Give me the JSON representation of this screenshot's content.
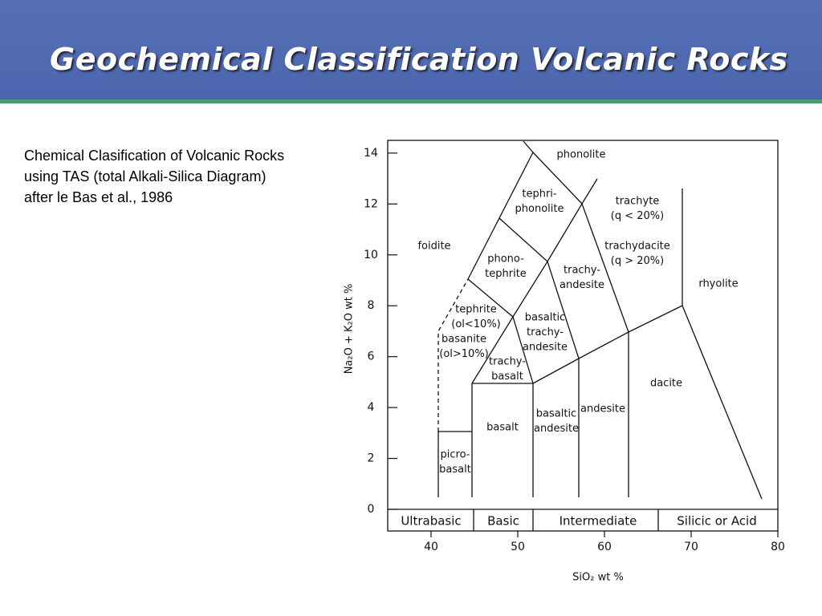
{
  "header": {
    "title": "Geochemical Classification Volcanic Rocks"
  },
  "text": [
    "Chemical Clasification of Volcanic Rocks",
    "using TAS (total Alkali-Silica Diagram)",
    "after le Bas et al., 1986"
  ],
  "chart_data": {
    "type": "tas",
    "x_label": "SiO₂ wt %",
    "y_label": "Na₂O + K₂O wt %",
    "xlim": [
      35,
      80
    ],
    "ylim": [
      0,
      14.5
    ],
    "xticks": [
      40,
      50,
      60,
      70,
      80
    ],
    "yticks": [
      0,
      2,
      4,
      6,
      8,
      10,
      12,
      14
    ],
    "groups": [
      "Ultrabasic",
      "Basic",
      "Intermediate",
      "Silicic or Acid"
    ],
    "fields": [
      [
        "phonolite"
      ],
      [
        "tephri-",
        "phonolite"
      ],
      [
        "trachyte",
        "(q < 20%)"
      ],
      [
        "trachydacite",
        "(q > 20%)"
      ],
      [
        "foidite"
      ],
      [
        "phono-",
        "tephrite"
      ],
      [
        "trachy-",
        "andesite"
      ],
      [
        "rhyolite"
      ],
      [
        "tephrite",
        "(ol<10%)"
      ],
      [
        "basaltic",
        "trachy-",
        "andesite"
      ],
      [
        "basanite",
        "(ol>10%)"
      ],
      [
        "trachy-",
        "basalt"
      ],
      [
        "dacite"
      ],
      [
        "andesite"
      ],
      [
        "basalt"
      ],
      [
        "basaltic",
        "andesite"
      ],
      [
        "picro-",
        "basalt"
      ]
    ]
  }
}
